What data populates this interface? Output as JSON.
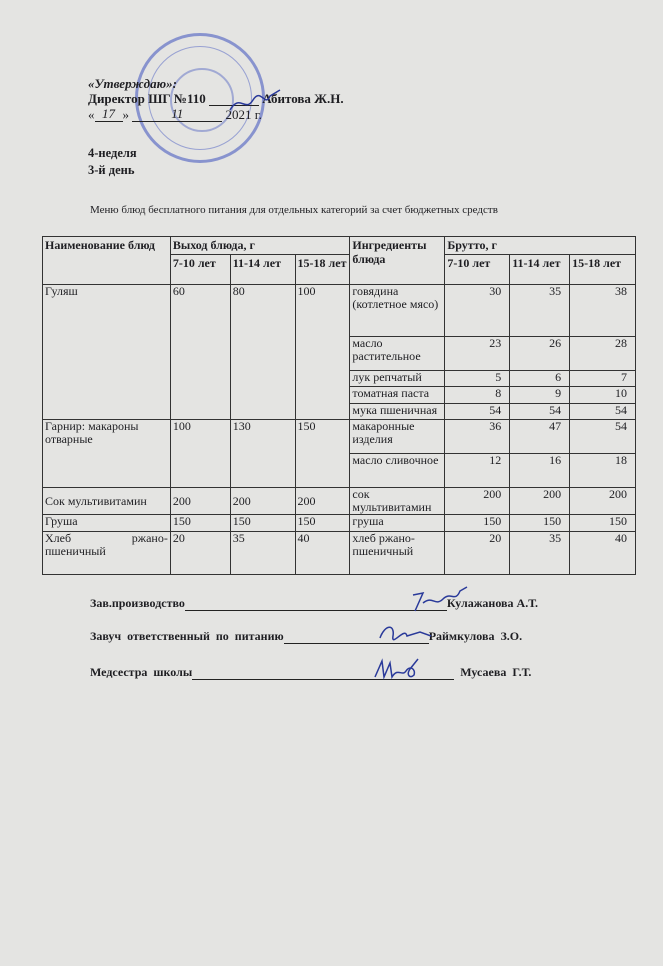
{
  "approval": {
    "label": "«Утверждаю»:",
    "director_line": "Директор ШГ №110",
    "director_name": "Абитова Ж.Н.",
    "date_day": "17",
    "date_month": "11",
    "date_year": "2021 г."
  },
  "week": "4-неделя",
  "day": "3-й день",
  "title": "Меню блюд бесплатного питания для отдельных категорий за счет бюджетных средств",
  "table": {
    "headers": {
      "dish": "Наименование блюд",
      "output": "Выход блюда, г",
      "ingredients": "Ингредиенты блюда",
      "gross": "Брутто, г",
      "age1": "7-10 лет",
      "age2": "11-14 лет",
      "age3": "15-18 лет"
    },
    "dishes": [
      {
        "name": "Гуляш",
        "output": [
          "60",
          "80",
          "100"
        ],
        "ingredients": [
          {
            "name": "говядина (котлетное мясо)",
            "gross": [
              "30",
              "35",
              "38"
            ]
          },
          {
            "name": "масло растительное",
            "gross": [
              "23",
              "26",
              "28"
            ]
          },
          {
            "name": "лук репчатый",
            "gross": [
              "5",
              "6",
              "7"
            ]
          },
          {
            "name": "томатная паста",
            "gross": [
              "8",
              "9",
              "10"
            ]
          },
          {
            "name": "мука пшеничная",
            "gross": [
              "54",
              "54",
              "54"
            ]
          }
        ]
      },
      {
        "name": "Гарнир: макароны отварные",
        "output": [
          "100",
          "130",
          "150"
        ],
        "ingredients": [
          {
            "name": "макаронные изделия",
            "gross": [
              "36",
              "47",
              "54"
            ]
          },
          {
            "name": "масло сливочное",
            "gross": [
              "12",
              "16",
              "18"
            ]
          }
        ]
      },
      {
        "name": "Сок мультивитамин",
        "output": [
          "200",
          "200",
          "200"
        ],
        "ingredients": [
          {
            "name": "сок мультивитамин",
            "gross": [
              "200",
              "200",
              "200"
            ]
          }
        ]
      },
      {
        "name": "Груша",
        "output": [
          "150",
          "150",
          "150"
        ],
        "ingredients": [
          {
            "name": "груша",
            "gross": [
              "150",
              "150",
              "150"
            ]
          }
        ]
      },
      {
        "name": "Хлеб ржано-пшеничный",
        "output": [
          "20",
          "35",
          "40"
        ],
        "ingredients": [
          {
            "name": "хлеб ржано-пшеничный",
            "gross": [
              "20",
              "35",
              "40"
            ]
          }
        ]
      }
    ]
  },
  "signatures": [
    {
      "role": "Зав.производство",
      "name": "Кулажанова А.Т."
    },
    {
      "role": "Завуч ответственный по питанию",
      "name": "Раймкулова З.О."
    },
    {
      "role": "Медсестра школы",
      "name": "Мусаева Г.Т."
    }
  ],
  "colors": {
    "paper": "#e4e4e2",
    "stamp": "#3c50be",
    "ink": "#1e1e22"
  }
}
